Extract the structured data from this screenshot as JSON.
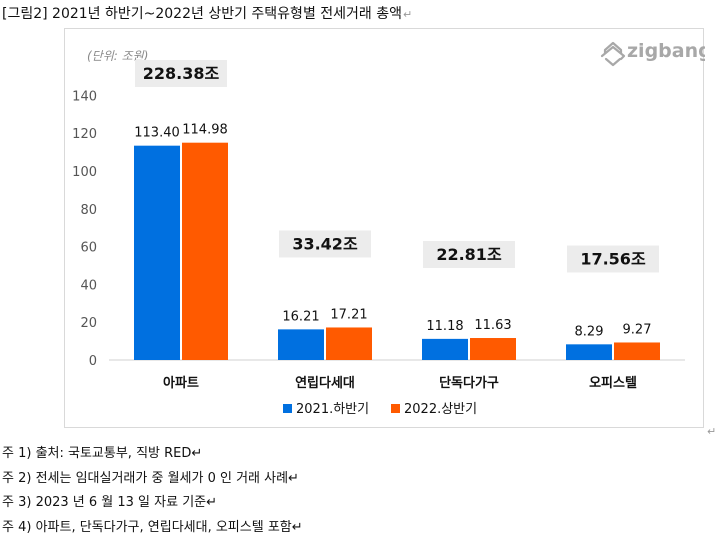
{
  "document": {
    "title": "[그림2] 2021년 하반기~2022년 상반기 주택유형별 전세거래 총액",
    "para_mark": "↵"
  },
  "chart_data": {
    "type": "bar",
    "unit_label": "(단위: 조원)",
    "logo_text": "zigbang",
    "categories": [
      "아파트",
      "연립다세대",
      "단독다가구",
      "오피스텔"
    ],
    "series": [
      {
        "name": "2021.하반기",
        "color": "#0070e0",
        "values": [
          113.4,
          16.21,
          11.18,
          8.29
        ],
        "labels": [
          "113.40",
          "16.21",
          "11.18",
          "8.29"
        ]
      },
      {
        "name": "2022.상반기",
        "color": "#ff5a00",
        "values": [
          114.98,
          17.21,
          11.63,
          9.27
        ],
        "labels": [
          "114.98",
          "17.21",
          "11.63",
          "9.27"
        ]
      }
    ],
    "totals": [
      "228.38조",
      "33.42조",
      "22.81조",
      "17.56조"
    ],
    "ylim": [
      0,
      140
    ],
    "yticks": [
      0,
      20,
      40,
      60,
      80,
      100,
      120,
      140
    ],
    "legend_position": "bottom",
    "grid": false
  },
  "notes": [
    "주 1) 출처: 국토교통부, 직방 RED↵",
    "주 2) 전세는 임대실거래가 중 월세가 0 인 거래 사례↵",
    "주 3) 2023 년 6 월 13 일 자료 기준↵",
    "주 4) 아파트, 단독다가구, 연립다세대, 오피스텔 포함↵"
  ]
}
